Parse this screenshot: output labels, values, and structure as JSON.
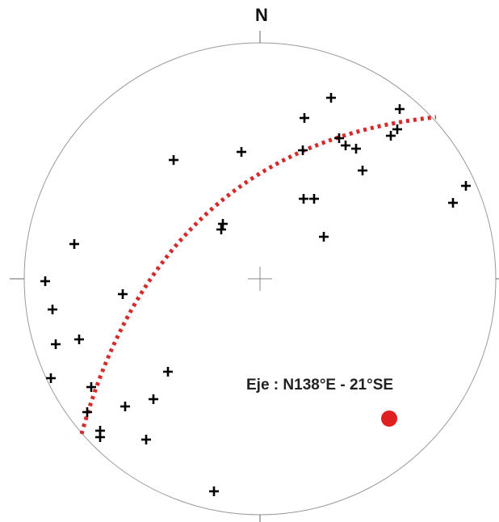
{
  "north_label": "N",
  "axis_label": "Eje : N138°E - 21°SE",
  "colors": {
    "poles": "#000000",
    "great_circle": "#d42a2a",
    "axis_point": "#e02020",
    "primitive": "#999999"
  },
  "icons": {
    "pole_marker": "plus-icon",
    "axis_marker": "filled-circle-icon"
  }
}
